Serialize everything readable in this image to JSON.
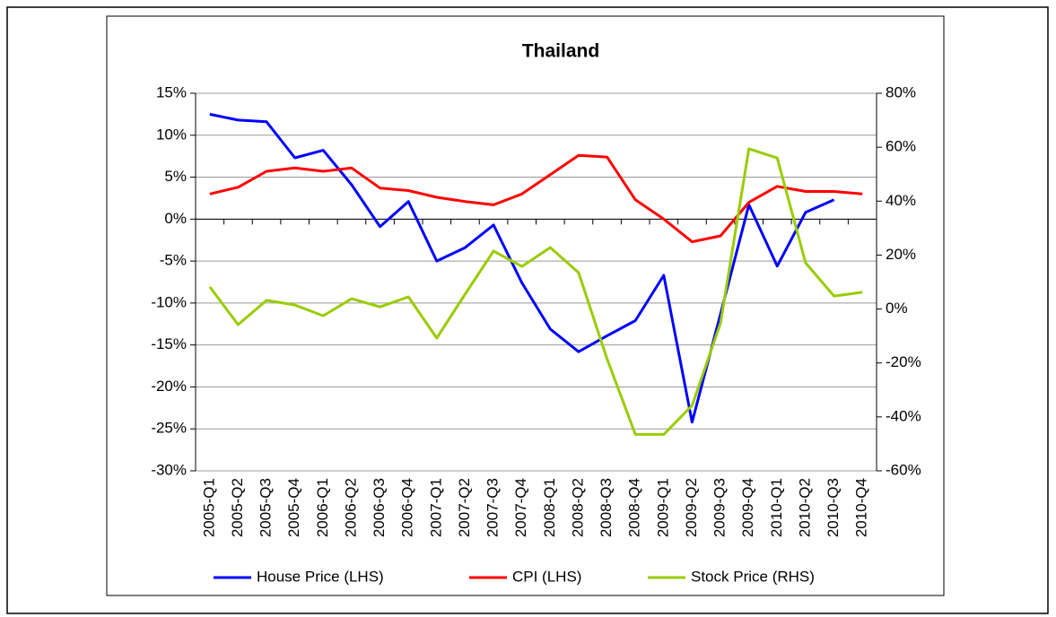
{
  "chart_data": {
    "type": "line",
    "title": "Thailand",
    "categories": [
      "2005-Q1",
      "2005-Q2",
      "2005-Q3",
      "2005-Q4",
      "2006-Q1",
      "2006-Q2",
      "2006-Q3",
      "2006-Q4",
      "2007-Q1",
      "2007-Q2",
      "2007-Q3",
      "2007-Q4",
      "2008-Q1",
      "2008-Q2",
      "2008-Q3",
      "2008-Q4",
      "2009-Q1",
      "2009-Q2",
      "2009-Q3",
      "2009-Q4",
      "2010-Q1",
      "2010-Q2",
      "2010-Q3",
      "2010-Q4"
    ],
    "series": [
      {
        "name": "House Price (LHS)",
        "color": "#0000ff",
        "values": [
          12.5,
          11.8,
          11.6,
          7.3,
          8.2,
          4.1,
          -0.9,
          2.1,
          -5.0,
          -3.4,
          -0.7,
          -7.6,
          -13.1,
          -15.8,
          -13.9,
          -12.1,
          -6.7,
          -24.2,
          -11.3,
          1.7,
          -5.6,
          0.8,
          2.3,
          null
        ]
      },
      {
        "name": "CPI (LHS)",
        "color": "#ff0000",
        "values": [
          3.0,
          3.8,
          5.7,
          6.1,
          5.7,
          6.1,
          3.7,
          3.4,
          2.6,
          2.1,
          1.7,
          3.0,
          5.3,
          7.6,
          7.4,
          2.3,
          0.0,
          -2.7,
          -2.0,
          2.0,
          3.9,
          3.3,
          3.3,
          3.0
        ]
      },
      {
        "name": "Stock Price (RHS)",
        "color": "#99cc00",
        "axis": "y2",
        "values": [
          8.2,
          -5.8,
          3.2,
          1.5,
          -2.5,
          3.8,
          0.8,
          4.5,
          -10.8,
          5.5,
          21.5,
          15.8,
          22.8,
          13.5,
          -18.5,
          -46.5,
          -46.5,
          -35.8,
          -5.2,
          59.4,
          56.0,
          17.1,
          4.8,
          6.2
        ]
      }
    ],
    "ylim": [
      -30,
      15
    ],
    "yticks": [
      {
        "value": -30,
        "label": "-30%"
      },
      {
        "value": -25,
        "label": "-25%"
      },
      {
        "value": -20,
        "label": "-20%"
      },
      {
        "value": -15,
        "label": "-15%"
      },
      {
        "value": -10,
        "label": "-10%"
      },
      {
        "value": -5,
        "label": "-5%"
      },
      {
        "value": 0,
        "label": "0%"
      },
      {
        "value": 5,
        "label": "5%"
      },
      {
        "value": 10,
        "label": "10%"
      },
      {
        "value": 15,
        "label": "15%"
      }
    ],
    "y2lim": [
      -60,
      80
    ],
    "y2ticks": [
      {
        "value": -60,
        "label": "-60%"
      },
      {
        "value": -40,
        "label": "-40%"
      },
      {
        "value": -20,
        "label": "-20%"
      },
      {
        "value": 0,
        "label": "0%"
      },
      {
        "value": 20,
        "label": "20%"
      },
      {
        "value": 40,
        "label": "40%"
      },
      {
        "value": 60,
        "label": "60%"
      },
      {
        "value": 80,
        "label": "80%"
      }
    ],
    "grid": true,
    "legend": "bottom"
  }
}
